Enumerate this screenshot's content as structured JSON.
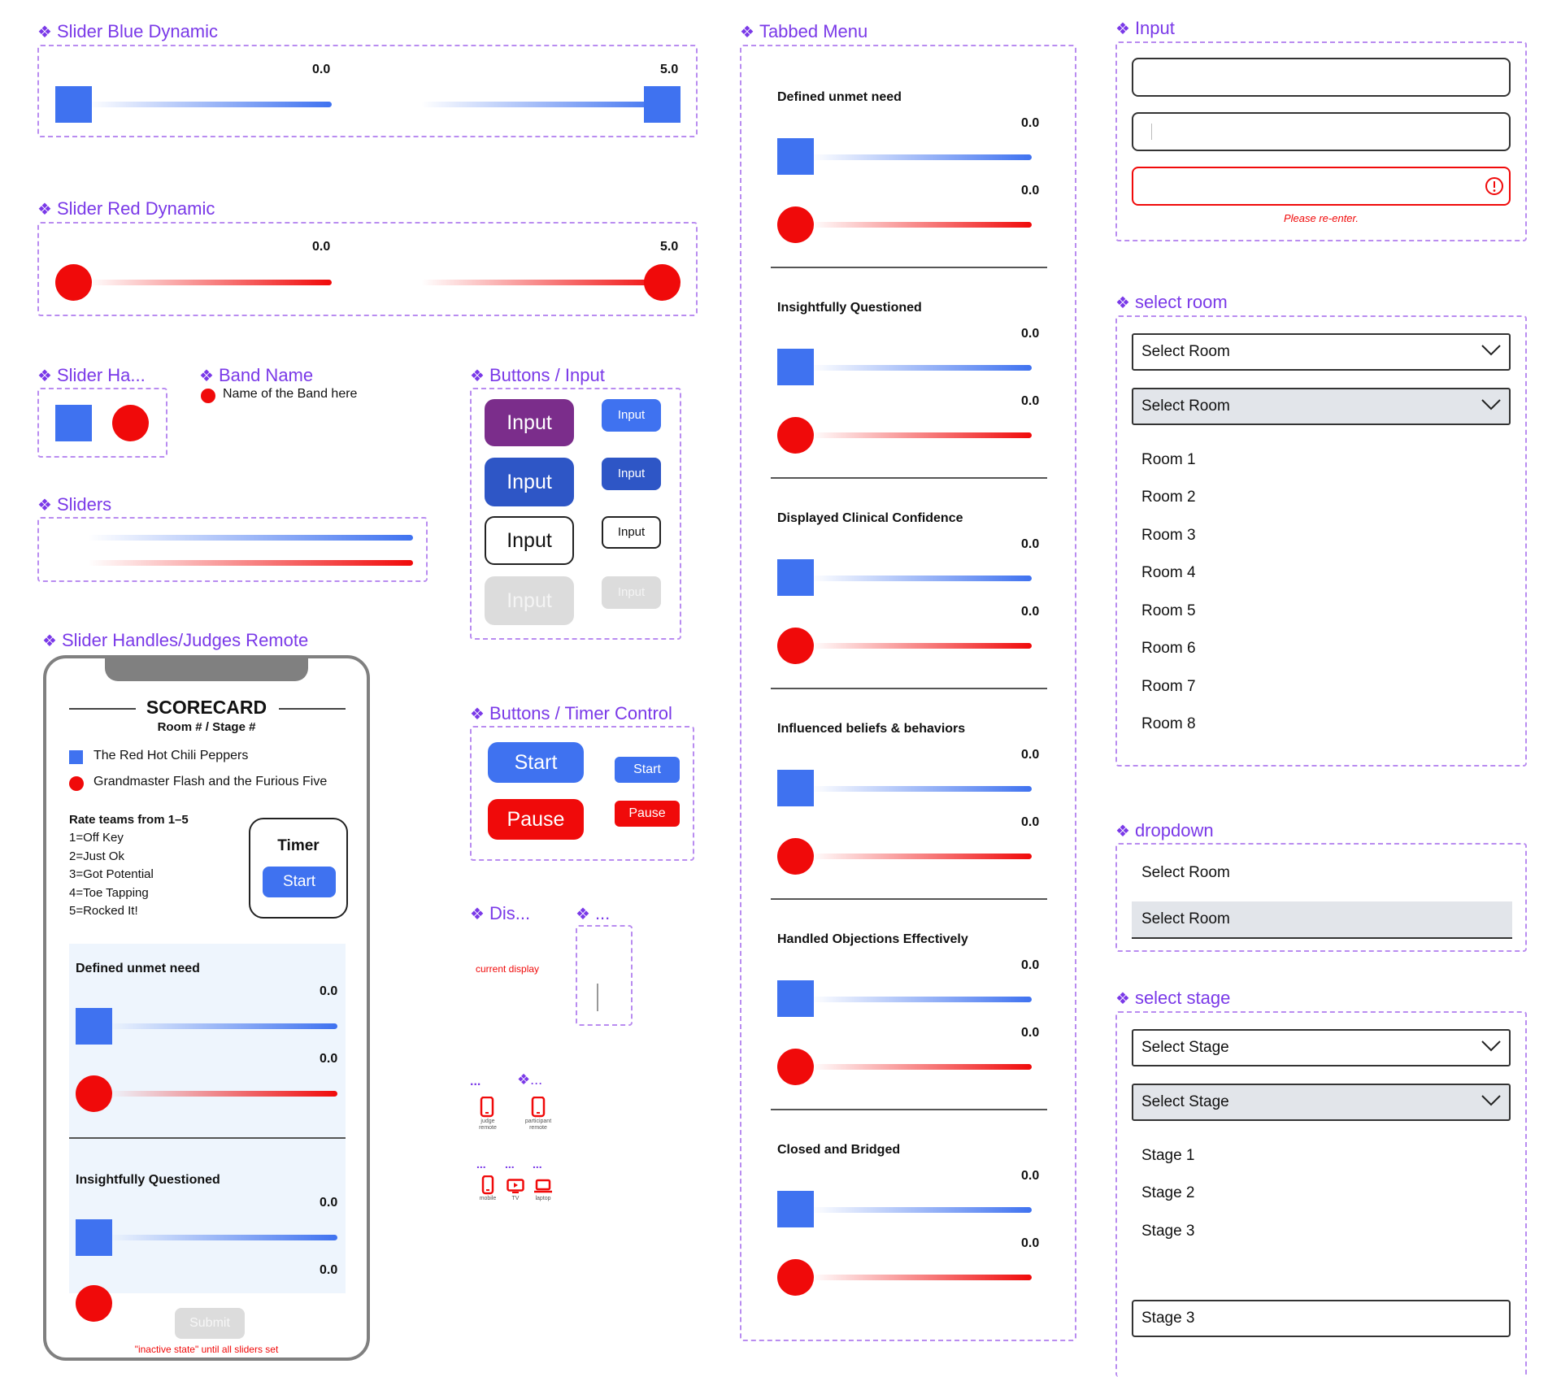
{
  "colors": {
    "accent_purple": "#7a39e8",
    "blue": "#3f72f0",
    "red": "#f00a0a",
    "dash": "#b98cf0",
    "button_purple": "#7b2d8b",
    "button_dark_blue": "#2e56c6",
    "disabled": "#dcdcdc"
  },
  "sections": {
    "slider_blue_dynamic": "Slider Blue Dynamic",
    "slider_red_dynamic": "Slider Red Dynamic",
    "slider_handles_short": "Slider Ha...",
    "band_name": "Band Name",
    "buttons_input": "Buttons / Input",
    "sliders": "Sliders",
    "slider_handles_judges_remote": "Slider Handles/Judges Remote",
    "buttons_timer_control": "Buttons / Timer Control",
    "dis": "Dis...",
    "ellipsis": "...",
    "tabbed_menu": "Tabbed Menu",
    "input": "Input",
    "select_room": "select room",
    "dropdown": "dropdown",
    "select_stage": "select stage"
  },
  "slider_values": {
    "min": "0.0",
    "max": "5.0"
  },
  "band": {
    "placeholder": "Name of the Band here"
  },
  "buttons": {
    "input_label": "Input",
    "start": "Start",
    "pause": "Pause"
  },
  "scorecard": {
    "title": "SCORECARD",
    "subtitle": "Room # / Stage #",
    "teams": [
      "The Red Hot Chili Peppers",
      "Grandmaster Flash and the Furious Five"
    ],
    "rate_heading": "Rate teams from 1–5",
    "rates": [
      "1=Off Key",
      "2=Just Ok",
      "3=Got Potential",
      "4=Toe Tapping",
      "5=Rocked It!"
    ],
    "timer_label": "Timer",
    "timer_button": "Start",
    "questions": [
      "Defined unmet need",
      "Insightfully Questioned"
    ],
    "value": "0.0",
    "submit": "Submit",
    "note": "\"inactive state\" until all sliders set"
  },
  "display": {
    "current": "current display"
  },
  "devices": {
    "ellipsis": "...",
    "judge_remote": "judge remote",
    "participant_remote": "participant remote",
    "mobile": "mobile",
    "tv": "TV",
    "laptop": "laptop"
  },
  "tabbed": {
    "questions": [
      "Defined unmet need",
      "Insightfully Questioned",
      "Displayed Clinical Confidence",
      "Influenced beliefs & behaviors",
      "Handled Objections Effectively",
      "Closed and Bridged"
    ],
    "value": "0.0"
  },
  "input_section": {
    "error": "Please re-enter."
  },
  "room": {
    "placeholder": "Select Room",
    "options": [
      "Room 1",
      "Room 2",
      "Room 3",
      "Room 4",
      "Room 5",
      "Room 6",
      "Room 7",
      "Room 8"
    ]
  },
  "stage": {
    "placeholder": "Select Stage",
    "options": [
      "Stage 1",
      "Stage 2",
      "Stage 3"
    ],
    "selected": "Stage 3"
  }
}
